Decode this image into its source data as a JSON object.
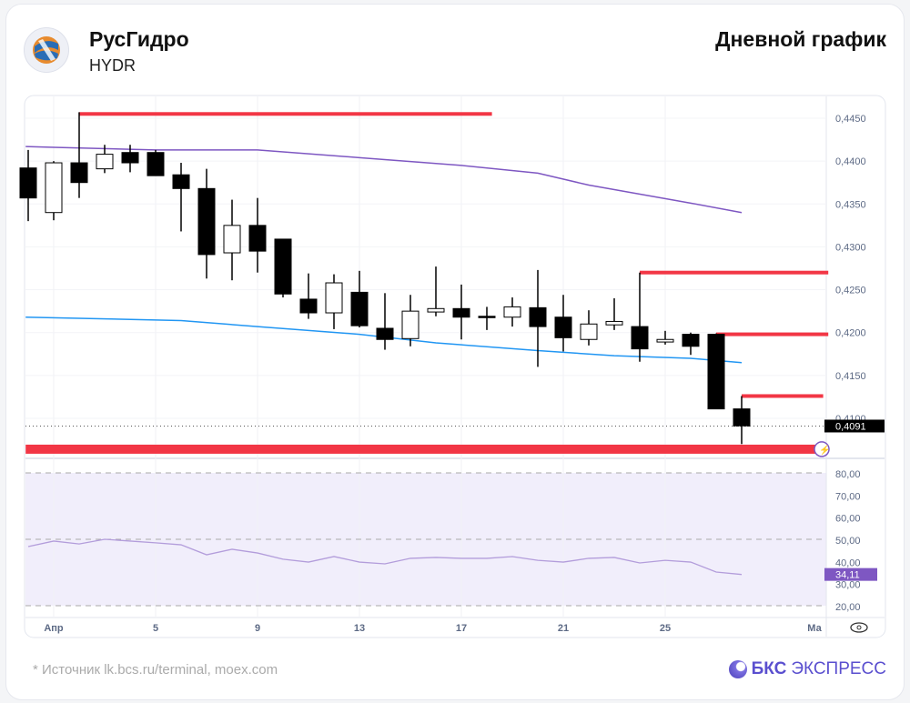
{
  "header": {
    "company": "РусГидро",
    "ticker": "HYDR",
    "chart_type": "Дневной график"
  },
  "footer": {
    "source": "* Источник lk.bcs.ru/terminal, moex.com",
    "brand_bold": "БКС",
    "brand_rest": "ЭКСПРЕСС"
  },
  "colors": {
    "up": "#ffffff",
    "down": "#000000",
    "levels": "#f23645",
    "ma_long": "#7e57c2",
    "ma_short": "#2196f3",
    "rsi": "#b39ddb",
    "rsi_badge": "#7e57c2"
  },
  "chart_data": {
    "type": "candlestick",
    "title": "Дневной график",
    "price_ticks": [
      "0,4450",
      "0,4400",
      "0,4350",
      "0,4300",
      "0,4250",
      "0,4200",
      "0,4150",
      "0,4100"
    ],
    "price_tick_values": [
      0.445,
      0.44,
      0.435,
      0.43,
      0.425,
      0.42,
      0.415,
      0.41
    ],
    "ylim": [
      0.4062,
      0.4456
    ],
    "last_price_label": "0,4091",
    "x_labels": [
      {
        "label": "Апр",
        "index": 1
      },
      {
        "label": "5",
        "index": 5
      },
      {
        "label": "9",
        "index": 9
      },
      {
        "label": "13",
        "index": 13
      },
      {
        "label": "17",
        "index": 17
      },
      {
        "label": "21",
        "index": 21
      },
      {
        "label": "25",
        "index": 25
      },
      {
        "label": "Ма",
        "index": 31
      }
    ],
    "ohlc": [
      [
        0.4392,
        0.4413,
        0.433,
        0.4357
      ],
      [
        0.434,
        0.44,
        0.4331,
        0.4398
      ],
      [
        0.4398,
        0.4457,
        0.4357,
        0.4375
      ],
      [
        0.4391,
        0.4419,
        0.4386,
        0.4408
      ],
      [
        0.441,
        0.4419,
        0.4387,
        0.4398
      ],
      [
        0.441,
        0.4413,
        0.4383,
        0.4383
      ],
      [
        0.4384,
        0.4398,
        0.4318,
        0.4368
      ],
      [
        0.4368,
        0.4391,
        0.4263,
        0.4291
      ],
      [
        0.4293,
        0.4355,
        0.4261,
        0.4325
      ],
      [
        0.4325,
        0.4357,
        0.427,
        0.4295
      ],
      [
        0.4309,
        0.4309,
        0.4241,
        0.4245
      ],
      [
        0.4239,
        0.4269,
        0.4216,
        0.4223
      ],
      [
        0.4223,
        0.4268,
        0.4204,
        0.4258
      ],
      [
        0.4247,
        0.4272,
        0.4206,
        0.4208
      ],
      [
        0.4205,
        0.4246,
        0.418,
        0.4192
      ],
      [
        0.4193,
        0.4244,
        0.4184,
        0.4225
      ],
      [
        0.4224,
        0.4277,
        0.4219,
        0.4228
      ],
      [
        0.4228,
        0.4256,
        0.4192,
        0.4218
      ],
      [
        0.4219,
        0.423,
        0.4203,
        0.4219
      ],
      [
        0.4218,
        0.4241,
        0.4207,
        0.423
      ],
      [
        0.4229,
        0.4273,
        0.416,
        0.4207
      ],
      [
        0.4218,
        0.4244,
        0.4178,
        0.4194
      ],
      [
        0.4192,
        0.4226,
        0.4185,
        0.421
      ],
      [
        0.4209,
        0.424,
        0.4203,
        0.4213
      ],
      [
        0.4207,
        0.427,
        0.4166,
        0.4181
      ],
      [
        0.4189,
        0.4202,
        0.4186,
        0.4192
      ],
      [
        0.4198,
        0.42,
        0.4174,
        0.4184
      ],
      [
        0.4198,
        0.4199,
        0.4111,
        0.4111
      ],
      [
        0.4111,
        0.4126,
        0.407,
        0.4091
      ]
    ],
    "ma_long": [
      [
        -0.1,
        0.4417
      ],
      [
        1,
        0.4416
      ],
      [
        5,
        0.4413
      ],
      [
        9,
        0.4413
      ],
      [
        13,
        0.4404
      ],
      [
        17,
        0.4395
      ],
      [
        20,
        0.4386
      ],
      [
        22,
        0.4372
      ],
      [
        26,
        0.4351
      ],
      [
        28,
        0.434
      ]
    ],
    "ma_short": [
      [
        -0.1,
        0.4218
      ],
      [
        6,
        0.4214
      ],
      [
        9,
        0.4207
      ],
      [
        13,
        0.4198
      ],
      [
        16,
        0.4188
      ],
      [
        20,
        0.4179
      ],
      [
        23,
        0.4173
      ],
      [
        26,
        0.417
      ],
      [
        28,
        0.4165
      ]
    ],
    "levels": [
      {
        "price": 0.4455,
        "from": 2,
        "to": 18.2
      },
      {
        "price": 0.427,
        "from": 24,
        "to": 31.4
      },
      {
        "price": 0.4198,
        "from": 27,
        "to": 31.4
      },
      {
        "price": 0.4126,
        "from": 28,
        "to": 31.2
      },
      {
        "price": 0.4064,
        "from": -0.1,
        "to": 30.9,
        "thick": true
      }
    ],
    "rsi": {
      "ticks": [
        "80,00",
        "70,00",
        "60,00",
        "50,00",
        "40,00",
        "30,00",
        "20,00"
      ],
      "tick_values": [
        80,
        70,
        60,
        50,
        40,
        30,
        20
      ],
      "last_label": "34,11",
      "values": [
        46.7,
        49.2,
        47.9,
        50,
        49.2,
        48.4,
        47.5,
        43,
        45.5,
        43.8,
        41,
        39.7,
        42.2,
        39.7,
        38.9,
        41.4,
        41.8,
        41.4,
        41.4,
        42.2,
        40.5,
        39.7,
        41.4,
        41.8,
        39.3,
        40.5,
        39.7,
        35.2,
        34.1
      ]
    }
  }
}
